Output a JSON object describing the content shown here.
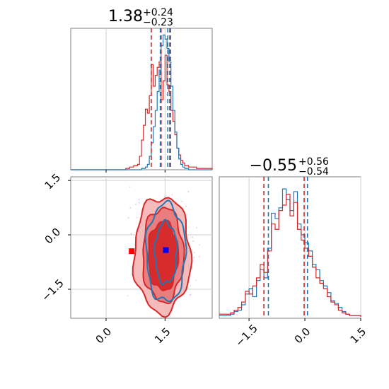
{
  "colors": {
    "red": "#d62728",
    "blue": "#1f77b4",
    "red_fill_light": "#f4b6b6",
    "red_fill_mid": "#e97a7a",
    "red_fill_dark": "#d62728",
    "marker_red": "#ff0000",
    "marker_blue": "#0000ff",
    "grid": "#cfcfcf",
    "axis": "#808080",
    "scatter_pink": "#f2c4df",
    "scatter_lilac": "#c9c4ee"
  },
  "chart_data": [
    {
      "panel": "marginal-p1",
      "type": "line",
      "title": {
        "main": "1.38",
        "sup": "+0.24",
        "sub": "−0.23"
      },
      "xlim": [
        -0.9,
        2.7
      ],
      "series": [
        {
          "name": "",
          "color": "red",
          "x": [
            -0.9,
            0.5,
            0.6,
            0.7,
            0.8,
            0.85,
            0.9,
            0.95,
            1.0,
            1.05,
            1.1,
            1.15,
            1.2,
            1.25,
            1.3,
            1.35,
            1.4,
            1.45,
            1.5,
            1.55,
            1.6,
            1.65,
            1.7,
            1.75,
            1.8,
            1.85,
            1.9,
            1.95,
            2.0,
            2.1,
            2.3,
            2.7
          ],
          "y": [
            0,
            0.01,
            0.02,
            0.03,
            0.04,
            0.1,
            0.22,
            0.33,
            0.45,
            0.42,
            0.55,
            0.78,
            0.62,
            0.7,
            0.76,
            0.8,
            0.52,
            0.66,
            0.85,
            0.63,
            0.58,
            0.44,
            0.36,
            0.26,
            0.16,
            0.11,
            0.07,
            0.05,
            0.03,
            0.02,
            0.01,
            0
          ]
        },
        {
          "name": "",
          "color": "blue",
          "x": [
            -0.9,
            0.9,
            1.0,
            1.05,
            1.1,
            1.15,
            1.2,
            1.25,
            1.3,
            1.35,
            1.4,
            1.45,
            1.5,
            1.55,
            1.6,
            1.65,
            1.7,
            1.75,
            1.8,
            1.85,
            1.9,
            1.95,
            2.0,
            2.1,
            2.7
          ],
          "y": [
            0,
            0.01,
            0.02,
            0.04,
            0.1,
            0.2,
            0.32,
            0.44,
            0.58,
            0.74,
            0.92,
            1.0,
            0.97,
            0.9,
            0.8,
            0.62,
            0.44,
            0.28,
            0.16,
            0.08,
            0.04,
            0.02,
            0.01,
            0,
            0
          ]
        }
      ],
      "vlines": [
        {
          "x": 1.15,
          "color": "red"
        },
        {
          "x": 1.4,
          "color": "red"
        },
        {
          "x": 1.62,
          "color": "red"
        },
        {
          "x": 1.38,
          "color": "blue"
        },
        {
          "x": 1.57,
          "color": "blue"
        },
        {
          "x": 1.64,
          "color": "blue"
        }
      ],
      "grid": true,
      "xticks": [
        0.0,
        1.5
      ]
    },
    {
      "panel": "joint-p1-p2",
      "type": "scatter",
      "xlim": [
        -0.9,
        2.7
      ],
      "ylim": [
        -2.3,
        1.6
      ],
      "xticks": [
        0.0,
        1.5
      ],
      "xtick_labels": [
        "0.0",
        "1.5"
      ],
      "yticks": [
        1.5,
        0.0,
        -1.5
      ],
      "ytick_labels": [
        "1.5",
        "0.0",
        "−1.5"
      ],
      "grid": true,
      "contours": [
        {
          "color": "red",
          "level": "outer",
          "cx": 1.43,
          "cy": -0.55,
          "rx": 0.72,
          "ry": 1.6
        },
        {
          "color": "red",
          "level": "mid",
          "cx": 1.45,
          "cy": -0.55,
          "rx": 0.52,
          "ry": 1.3
        },
        {
          "color": "red",
          "level": "inner",
          "cx": 1.45,
          "cy": -0.58,
          "rx": 0.38,
          "ry": 0.95
        },
        {
          "color": "blue",
          "level": "outer",
          "cx": 1.52,
          "cy": -0.5,
          "rx": 0.5,
          "ry": 1.35
        },
        {
          "color": "blue",
          "level": "inner",
          "cx": 1.52,
          "cy": -0.5,
          "rx": 0.28,
          "ry": 0.85
        }
      ],
      "markers": [
        {
          "x": 0.65,
          "y": -0.45,
          "color": "marker_red",
          "shape": "square"
        },
        {
          "x": 1.52,
          "y": -0.42,
          "color": "marker_blue",
          "shape": "square"
        }
      ]
    },
    {
      "panel": "marginal-p2",
      "type": "line",
      "title": {
        "main": "−0.55",
        "sup": "+0.56",
        "sub": "−0.54"
      },
      "xlim": [
        -2.3,
        1.5
      ],
      "xticks": [
        -1.5,
        0.0,
        1.5
      ],
      "xtick_labels": [
        "−1.5",
        "0.0",
        "1.5"
      ],
      "grid": true,
      "series": [
        {
          "name": "",
          "color": "blue",
          "x": [
            -2.3,
            -2.0,
            -1.9,
            -1.8,
            -1.7,
            -1.6,
            -1.5,
            -1.4,
            -1.3,
            -1.2,
            -1.1,
            -1.0,
            -0.9,
            -0.8,
            -0.7,
            -0.6,
            -0.5,
            -0.4,
            -0.3,
            -0.2,
            -0.1,
            0.0,
            0.1,
            0.2,
            0.3,
            0.4,
            0.5,
            0.6,
            0.7,
            0.8,
            0.9,
            1.0,
            1.1,
            1.2,
            1.5
          ],
          "y": [
            0.02,
            0.03,
            0.05,
            0.06,
            0.1,
            0.18,
            0.22,
            0.16,
            0.28,
            0.36,
            0.3,
            0.52,
            0.78,
            0.74,
            0.82,
            0.96,
            0.88,
            0.8,
            0.94,
            0.7,
            0.62,
            0.56,
            0.5,
            0.4,
            0.36,
            0.28,
            0.24,
            0.19,
            0.13,
            0.11,
            0.08,
            0.05,
            0.03,
            0.02,
            0.01
          ]
        },
        {
          "name": "",
          "color": "red",
          "x": [
            -2.3,
            -2.0,
            -1.9,
            -1.8,
            -1.7,
            -1.6,
            -1.5,
            -1.4,
            -1.3,
            -1.2,
            -1.1,
            -1.0,
            -0.9,
            -0.8,
            -0.7,
            -0.6,
            -0.5,
            -0.4,
            -0.3,
            -0.2,
            -0.1,
            0.0,
            0.1,
            0.2,
            0.3,
            0.4,
            0.5,
            0.6,
            0.7,
            0.8,
            0.9,
            1.0,
            1.1,
            1.2,
            1.5
          ],
          "y": [
            0.03,
            0.04,
            0.06,
            0.08,
            0.12,
            0.2,
            0.18,
            0.24,
            0.3,
            0.4,
            0.34,
            0.5,
            0.7,
            0.66,
            0.8,
            0.84,
            0.92,
            0.76,
            0.86,
            0.66,
            0.58,
            0.52,
            0.46,
            0.38,
            0.3,
            0.26,
            0.22,
            0.16,
            0.12,
            0.1,
            0.06,
            0.04,
            0.03,
            0.02,
            0.01
          ]
        }
      ],
      "vlines": [
        {
          "x": -1.1,
          "color": "red"
        },
        {
          "x": -0.02,
          "color": "red"
        },
        {
          "x": -0.98,
          "color": "blue"
        },
        {
          "x": 0.07,
          "color": "blue"
        }
      ]
    }
  ]
}
